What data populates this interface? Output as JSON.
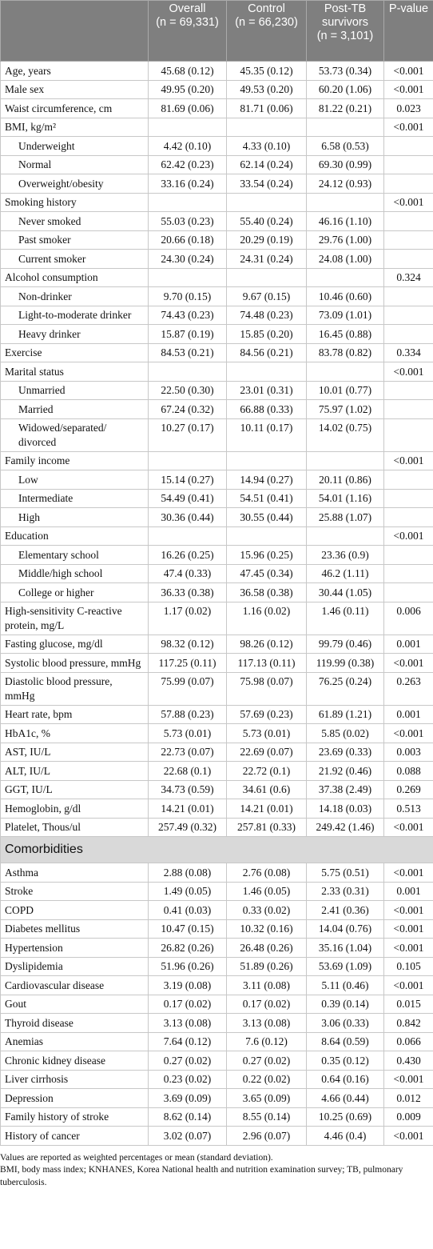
{
  "table": {
    "header": [
      {
        "title": "Overall",
        "n": "(n = 69,331)"
      },
      {
        "title": "Control",
        "n": "(n = 66,230)"
      },
      {
        "title": "Post-TB survivors",
        "n": "(n = 3,101)"
      },
      {
        "title": "P-value"
      }
    ],
    "rows": [
      {
        "label": "Age, years",
        "cells": [
          "45.68 (0.12)",
          "45.35 (0.12)",
          "53.73 (0.34)",
          "<0.001"
        ]
      },
      {
        "label": "Male sex",
        "cells": [
          "49.95 (0.20)",
          "49.53 (0.20)",
          "60.20 (1.06)",
          "<0.001"
        ]
      },
      {
        "label": "Waist circumference, cm",
        "cells": [
          "81.69 (0.06)",
          "81.71 (0.06)",
          "81.22 (0.21)",
          "0.023"
        ]
      },
      {
        "label": "BMI, kg/m²",
        "cells": [
          null,
          null,
          null,
          "<0.001"
        ]
      },
      {
        "label": "Underweight",
        "indent": true,
        "cells": [
          "4.42 (0.10)",
          "4.33 (0.10)",
          "6.58 (0.53)",
          null
        ]
      },
      {
        "label": "Normal",
        "indent": true,
        "cells": [
          "62.42 (0.23)",
          "62.14 (0.24)",
          "69.30 (0.99)",
          null
        ]
      },
      {
        "label": "Overweight/obesity",
        "indent": true,
        "cells": [
          "33.16 (0.24)",
          "33.54 (0.24)",
          "24.12 (0.93)",
          null
        ]
      },
      {
        "label": "Smoking history",
        "cells": [
          null,
          null,
          null,
          "<0.001"
        ]
      },
      {
        "label": "Never smoked",
        "indent": true,
        "cells": [
          "55.03 (0.23)",
          "55.40 (0.24)",
          "46.16 (1.10)",
          null
        ]
      },
      {
        "label": "Past smoker",
        "indent": true,
        "cells": [
          "20.66 (0.18)",
          "20.29 (0.19)",
          "29.76 (1.00)",
          null
        ]
      },
      {
        "label": "Current smoker",
        "indent": true,
        "cells": [
          "24.30 (0.24)",
          "24.31 (0.24)",
          "24.08 (1.00)",
          null
        ]
      },
      {
        "label": "Alcohol consumption",
        "cells": [
          null,
          null,
          null,
          "0.324"
        ]
      },
      {
        "label": "Non-drinker",
        "indent": true,
        "cells": [
          "9.70 (0.15)",
          "9.67 (0.15)",
          "10.46 (0.60)",
          null
        ]
      },
      {
        "label": "Light-to-moderate drinker",
        "indent": true,
        "cells": [
          "74.43 (0.23)",
          "74.48 (0.23)",
          "73.09 (1.01)",
          null
        ]
      },
      {
        "label": "Heavy drinker",
        "indent": true,
        "cells": [
          "15.87 (0.19)",
          "15.85 (0.20)",
          "16.45 (0.88)",
          null
        ]
      },
      {
        "label": "Exercise",
        "cells": [
          "84.53 (0.21)",
          "84.56 (0.21)",
          "83.78 (0.82)",
          "0.334"
        ]
      },
      {
        "label": "Marital status",
        "cells": [
          null,
          null,
          null,
          "<0.001"
        ]
      },
      {
        "label": "Unmarried",
        "indent": true,
        "cells": [
          "22.50 (0.30)",
          "23.01 (0.31)",
          "10.01 (0.77)",
          null
        ]
      },
      {
        "label": "Married",
        "indent": true,
        "cells": [
          "67.24 (0.32)",
          "66.88 (0.33)",
          "75.97 (1.02)",
          null
        ]
      },
      {
        "label": "Widowed/separated/ divorced",
        "indent": true,
        "cells": [
          "10.27 (0.17)",
          "10.11 (0.17)",
          "14.02 (0.75)",
          null
        ]
      },
      {
        "label": "Family income",
        "cells": [
          null,
          null,
          null,
          "<0.001"
        ]
      },
      {
        "label": "Low",
        "indent": true,
        "cells": [
          "15.14 (0.27)",
          "14.94 (0.27)",
          "20.11 (0.86)",
          null
        ]
      },
      {
        "label": "Intermediate",
        "indent": true,
        "cells": [
          "54.49 (0.41)",
          "54.51 (0.41)",
          "54.01 (1.16)",
          null
        ]
      },
      {
        "label": "High",
        "indent": true,
        "cells": [
          "30.36 (0.44)",
          "30.55 (0.44)",
          "25.88 (1.07)",
          null
        ]
      },
      {
        "label": "Education",
        "cells": [
          null,
          null,
          null,
          "<0.001"
        ]
      },
      {
        "label": "Elementary school",
        "indent": true,
        "cells": [
          "16.26 (0.25)",
          "15.96 (0.25)",
          "23.36 (0.9)",
          null
        ]
      },
      {
        "label": "Middle/high school",
        "indent": true,
        "cells": [
          "47.4 (0.33)",
          "47.45 (0.34)",
          "46.2 (1.11)",
          null
        ]
      },
      {
        "label": "College or higher",
        "indent": true,
        "cells": [
          "36.33 (0.38)",
          "36.58 (0.38)",
          "30.44 (1.05)",
          null
        ]
      },
      {
        "label": "High-sensitivity C-reactive protein, mg/L",
        "cells": [
          "1.17 (0.02)",
          "1.16 (0.02)",
          "1.46 (0.11)",
          "0.006"
        ]
      },
      {
        "label": "Fasting glucose, mg/dl",
        "cells": [
          "98.32 (0.12)",
          "98.26 (0.12)",
          "99.79 (0.46)",
          "0.001"
        ]
      },
      {
        "label": "Systolic blood pressure, mmHg",
        "cells": [
          "117.25 (0.11)",
          "117.13 (0.11)",
          "119.99 (0.38)",
          "<0.001"
        ]
      },
      {
        "label": "Diastolic blood pressure, mmHg",
        "cells": [
          "75.99 (0.07)",
          "75.98 (0.07)",
          "76.25 (0.24)",
          "0.263"
        ]
      },
      {
        "label": "Heart rate, bpm",
        "cells": [
          "57.88 (0.23)",
          "57.69 (0.23)",
          "61.89 (1.21)",
          "0.001"
        ]
      },
      {
        "label": "HbA1c, %",
        "cells": [
          "5.73 (0.01)",
          "5.73 (0.01)",
          "5.85 (0.02)",
          "<0.001"
        ]
      },
      {
        "label": "AST, IU/L",
        "cells": [
          "22.73 (0.07)",
          "22.69 (0.07)",
          "23.69 (0.33)",
          "0.003"
        ]
      },
      {
        "label": "ALT, IU/L",
        "cells": [
          "22.68 (0.1)",
          "22.72 (0.1)",
          "21.92 (0.46)",
          "0.088"
        ]
      },
      {
        "label": "GGT, IU/L",
        "cells": [
          "34.73 (0.59)",
          "34.61 (0.6)",
          "37.38 (2.49)",
          "0.269"
        ]
      },
      {
        "label": "Hemoglobin, g/dl",
        "cells": [
          "14.21 (0.01)",
          "14.21 (0.01)",
          "14.18 (0.03)",
          "0.513"
        ]
      },
      {
        "label": "Platelet, Thous/ul",
        "cells": [
          "257.49 (0.32)",
          "257.81 (0.33)",
          "249.42 (1.46)",
          "<0.001"
        ]
      },
      {
        "section": "Comorbidities"
      },
      {
        "label": "Asthma",
        "cells": [
          "2.88 (0.08)",
          "2.76 (0.08)",
          "5.75 (0.51)",
          "<0.001"
        ]
      },
      {
        "label": "Stroke",
        "cells": [
          "1.49 (0.05)",
          "1.46 (0.05)",
          "2.33 (0.31)",
          "0.001"
        ]
      },
      {
        "label": "COPD",
        "cells": [
          "0.41 (0.03)",
          "0.33 (0.02)",
          "2.41 (0.36)",
          "<0.001"
        ]
      },
      {
        "label": "Diabetes mellitus",
        "cells": [
          "10.47 (0.15)",
          "10.32 (0.16)",
          "14.04 (0.76)",
          "<0.001"
        ]
      },
      {
        "label": "Hypertension",
        "cells": [
          "26.82 (0.26)",
          "26.48 (0.26)",
          "35.16 (1.04)",
          "<0.001"
        ]
      },
      {
        "label": "Dyslipidemia",
        "cells": [
          "51.96 (0.26)",
          "51.89 (0.26)",
          "53.69 (1.09)",
          "0.105"
        ]
      },
      {
        "label": "Cardiovascular disease",
        "cells": [
          "3.19 (0.08)",
          "3.11 (0.08)",
          "5.11 (0.46)",
          "<0.001"
        ]
      },
      {
        "label": "Gout",
        "cells": [
          "0.17 (0.02)",
          "0.17 (0.02)",
          "0.39 (0.14)",
          "0.015"
        ]
      },
      {
        "label": "Thyroid disease",
        "cells": [
          "3.13 (0.08)",
          "3.13 (0.08)",
          "3.06 (0.33)",
          "0.842"
        ]
      },
      {
        "label": "Anemias",
        "cells": [
          "7.64 (0.12)",
          "7.6 (0.12)",
          "8.64 (0.59)",
          "0.066"
        ]
      },
      {
        "label": "Chronic kidney disease",
        "cells": [
          "0.27 (0.02)",
          "0.27 (0.02)",
          "0.35 (0.12)",
          "0.430"
        ]
      },
      {
        "label": "Liver cirrhosis",
        "cells": [
          "0.23 (0.02)",
          "0.22 (0.02)",
          "0.64 (0.16)",
          "<0.001"
        ]
      },
      {
        "label": "Depression",
        "cells": [
          "3.69 (0.09)",
          "3.65 (0.09)",
          "4.66 (0.44)",
          "0.012"
        ]
      },
      {
        "label": "Family history of stroke",
        "cells": [
          "8.62 (0.14)",
          "8.55 (0.14)",
          "10.25 (0.69)",
          "0.009"
        ]
      },
      {
        "label": "History of cancer",
        "cells": [
          "3.02 (0.07)",
          "2.96 (0.07)",
          "4.46 (0.4)",
          "<0.001"
        ]
      }
    ]
  },
  "footnotes": [
    "Values are reported as weighted percentages or mean (standard deviation).",
    "BMI, body mass index; KNHANES, Korea National health and nutrition examination survey; TB, pulmonary tuberculosis."
  ]
}
